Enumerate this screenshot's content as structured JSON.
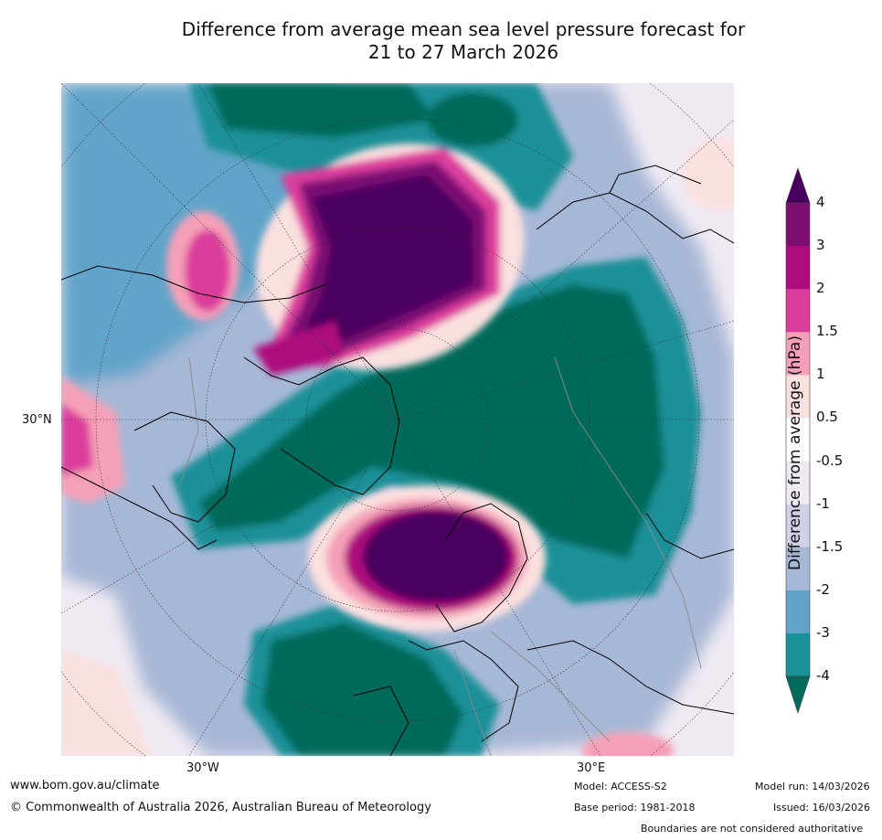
{
  "title": {
    "line1": "Difference from average mean sea level pressure forecast for",
    "line2": "21 to 27 March 2026"
  },
  "map": {
    "projection": "north-polar-stereographic",
    "lat_label": "30°N",
    "lon_labels": [
      "30°W",
      "30°E"
    ],
    "regions": [
      {
        "name": "pacific-high-anomaly",
        "category": "4"
      },
      {
        "name": "scandinavia-high-anomaly",
        "category": "4"
      },
      {
        "name": "alaska-high-anomaly",
        "category": "2"
      },
      {
        "name": "arctic-low-anomaly",
        "category": "-4"
      },
      {
        "name": "atlantic-low-anomaly",
        "category": "-4"
      },
      {
        "name": "north-pacific-low-anomaly",
        "category": "-4"
      }
    ]
  },
  "colorbar": {
    "title": "Difference from average (hPa)",
    "ticks": [
      "4",
      "3",
      "2",
      "1.5",
      "1",
      "0.5",
      "-0.5",
      "-1",
      "-1.5",
      "-2",
      "-3",
      "-4"
    ],
    "colors": [
      "#48005f",
      "#7c0e73",
      "#ad0c7d",
      "#dc3c9c",
      "#f5a0b8",
      "#fbe0e0",
      "#ffffff",
      "#efe9f2",
      "#d0d1e6",
      "#a7b8d6",
      "#62a4c9",
      "#1a9098",
      "#006b5a"
    ]
  },
  "footer": {
    "url": "www.bom.gov.au/climate",
    "copyright": "© Commonwealth of Australia 2026, Australian Bureau of Meteorology",
    "model": "Model: ACCESS-S2",
    "base_period": "Base period: 1981-2018",
    "model_run": "Model run: 14/03/2026",
    "issued": "Issued: 16/03/2026",
    "disclaimer": "Boundaries are not considered authoritative"
  }
}
